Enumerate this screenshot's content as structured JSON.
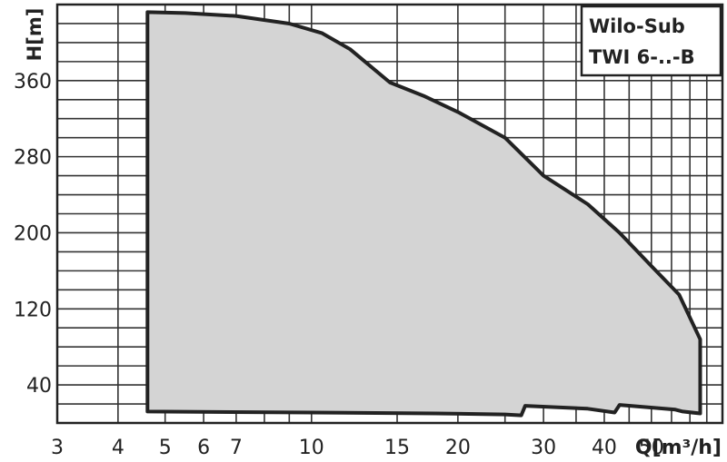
{
  "chart_data": {
    "type": "area",
    "legend": {
      "line1": "Wilo-Sub",
      "line2": "TWI 6-..-B",
      "position": "top-right"
    },
    "ylabel": "H[m]",
    "xlabel": "Q[m³/h]",
    "x_scale": "log",
    "xlim": [
      3,
      70
    ],
    "ylim": [
      0,
      440
    ],
    "xticks": [
      {
        "value": 3,
        "label": "3"
      },
      {
        "value": 4,
        "label": "4"
      },
      {
        "value": 5,
        "label": "5"
      },
      {
        "value": 6,
        "label": "6"
      },
      {
        "value": 7,
        "label": "7"
      },
      {
        "value": 10,
        "label": "10"
      },
      {
        "value": 15,
        "label": "15"
      },
      {
        "value": 20,
        "label": "20"
      },
      {
        "value": 30,
        "label": "30"
      },
      {
        "value": 40,
        "label": "40"
      },
      {
        "value": 50,
        "label": "50"
      }
    ],
    "yticks": [
      {
        "value": 40,
        "label": "40"
      },
      {
        "value": 120,
        "label": "120"
      },
      {
        "value": 200,
        "label": "200"
      },
      {
        "value": 280,
        "label": "280"
      },
      {
        "value": 360,
        "label": "360"
      }
    ],
    "grid": true,
    "colors": {
      "fill": "#d4d4d4",
      "outline": "#222222",
      "grid": "#333333"
    },
    "outline_upper": [
      [
        4.6,
        432
      ],
      [
        5.5,
        431
      ],
      [
        7,
        428
      ],
      [
        9,
        420
      ],
      [
        10.5,
        410
      ],
      [
        12,
        393
      ],
      [
        14.5,
        358
      ],
      [
        17,
        344
      ],
      [
        20,
        327
      ],
      [
        25,
        300
      ],
      [
        30,
        260
      ],
      [
        37,
        230
      ],
      [
        43,
        200
      ],
      [
        50,
        165
      ],
      [
        57,
        135
      ],
      [
        63,
        88
      ]
    ],
    "outline_lower": [
      [
        63,
        10
      ],
      [
        58,
        12
      ],
      [
        56,
        14
      ],
      [
        48,
        17
      ],
      [
        43,
        19
      ],
      [
        42,
        11
      ],
      [
        37,
        15
      ],
      [
        27.5,
        18
      ],
      [
        27,
        8
      ],
      [
        25,
        9
      ],
      [
        18,
        10
      ],
      [
        10,
        11
      ],
      [
        4.6,
        12
      ]
    ]
  }
}
